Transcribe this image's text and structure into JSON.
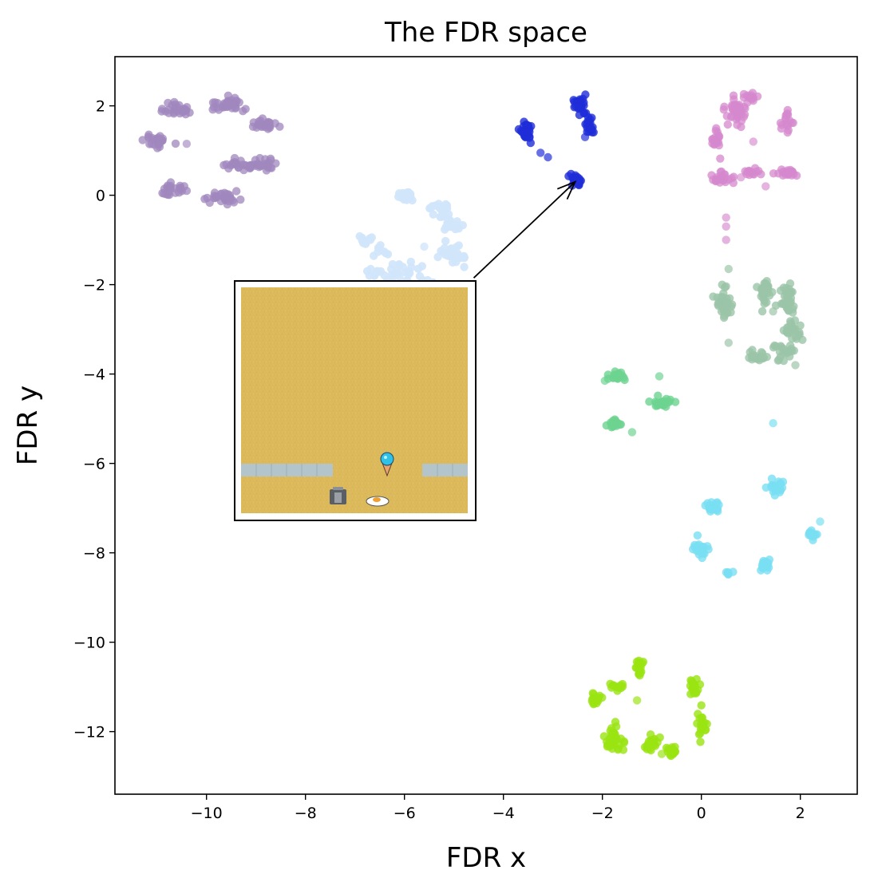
{
  "chart_data": {
    "type": "scatter",
    "title": "The FDR space",
    "xlabel": "FDR x",
    "ylabel": "FDR y",
    "xlim": [
      -11.85,
      3.15
    ],
    "ylim": [
      -13.4,
      3.1
    ],
    "xticks": [
      -10,
      -8,
      -6,
      -4,
      -2,
      0,
      2
    ],
    "yticks": [
      2,
      0,
      -2,
      -4,
      -6,
      -8,
      -10,
      -12
    ],
    "xtick_labels": [
      "−10",
      "−8",
      "−6",
      "−4",
      "−2",
      "0",
      "2"
    ],
    "ytick_labels": [
      "2",
      "0",
      "−2",
      "−4",
      "−6",
      "−8",
      "−10",
      "−12"
    ],
    "grid": false,
    "clusters": [
      {
        "color": "#a087bd",
        "opacity": 0.75,
        "blobs": [
          [
            -10.6,
            1.9,
            0.28,
            0.14,
            30
          ],
          [
            -9.6,
            2.05,
            0.35,
            0.13,
            35
          ],
          [
            -11.0,
            1.22,
            0.25,
            0.12,
            25
          ],
          [
            -8.8,
            1.58,
            0.25,
            0.13,
            25
          ],
          [
            -9.4,
            0.68,
            0.22,
            0.1,
            18
          ],
          [
            -8.9,
            0.68,
            0.35,
            0.12,
            30
          ],
          [
            -10.7,
            0.12,
            0.3,
            0.12,
            25
          ],
          [
            -9.7,
            -0.08,
            0.35,
            0.13,
            30
          ]
        ],
        "points": [
          [
            -10.4,
            1.15
          ],
          [
            -8.7,
            0.78
          ]
        ]
      },
      {
        "color": "#d2e6fb",
        "opacity": 0.95,
        "blobs": [
          [
            -6.0,
            -0.03,
            0.16,
            0.14,
            18
          ],
          [
            -5.3,
            -0.3,
            0.22,
            0.18,
            18
          ],
          [
            -5.05,
            -0.6,
            0.2,
            0.18,
            16
          ],
          [
            -6.8,
            -1.0,
            0.18,
            0.1,
            12
          ],
          [
            -6.5,
            -1.25,
            0.12,
            0.1,
            8
          ],
          [
            -5.05,
            -1.3,
            0.3,
            0.22,
            26
          ],
          [
            -5.95,
            -1.7,
            0.3,
            0.18,
            22
          ],
          [
            -6.55,
            -1.75,
            0.2,
            0.12,
            12
          ],
          [
            -5.45,
            -1.95,
            0.2,
            0.12,
            10
          ]
        ],
        "points": [
          [
            -5.6,
            -1.15
          ]
        ]
      },
      {
        "color": "#1f2dd8",
        "opacity": 0.8,
        "blobs": [
          [
            -3.55,
            1.45,
            0.12,
            0.22,
            28
          ],
          [
            -2.45,
            2.0,
            0.14,
            0.18,
            26
          ],
          [
            -2.25,
            1.55,
            0.1,
            0.2,
            20
          ],
          [
            -2.55,
            0.35,
            0.15,
            0.1,
            22
          ]
        ],
        "points": [
          [
            -3.25,
            0.95
          ],
          [
            -3.1,
            0.85
          ],
          [
            -2.35,
            1.3
          ]
        ]
      },
      {
        "color": "#d588cd",
        "opacity": 0.75,
        "blobs": [
          [
            0.7,
            1.9,
            0.2,
            0.28,
            40
          ],
          [
            0.3,
            1.25,
            0.1,
            0.25,
            20
          ],
          [
            1.0,
            2.2,
            0.15,
            0.1,
            15
          ],
          [
            1.75,
            1.65,
            0.1,
            0.2,
            18
          ],
          [
            0.45,
            0.4,
            0.2,
            0.12,
            25
          ],
          [
            1.05,
            0.5,
            0.15,
            0.1,
            14
          ],
          [
            1.75,
            0.5,
            0.2,
            0.1,
            22
          ]
        ],
        "points": [
          [
            1.05,
            1.2
          ],
          [
            0.5,
            -0.5
          ],
          [
            0.5,
            -0.7
          ],
          [
            0.5,
            -1.0
          ],
          [
            1.3,
            0.2
          ],
          [
            0.8,
            0.4
          ]
        ]
      },
      {
        "color": "#9bc4a8",
        "opacity": 0.8,
        "blobs": [
          [
            0.45,
            -2.5,
            0.15,
            0.32,
            40
          ],
          [
            1.3,
            -2.2,
            0.12,
            0.35,
            26
          ],
          [
            1.75,
            -2.3,
            0.12,
            0.4,
            30
          ],
          [
            1.85,
            -3.0,
            0.15,
            0.3,
            24
          ],
          [
            1.1,
            -3.6,
            0.22,
            0.12,
            22
          ],
          [
            1.7,
            -3.5,
            0.2,
            0.2,
            20
          ]
        ],
        "points": [
          [
            0.55,
            -1.65
          ],
          [
            1.9,
            -3.8
          ],
          [
            1.55,
            -3.7
          ],
          [
            1.45,
            -2.6
          ],
          [
            0.55,
            -3.3
          ]
        ]
      },
      {
        "color": "#6dd390",
        "opacity": 0.8,
        "blobs": [
          [
            -1.7,
            -4.05,
            0.15,
            0.1,
            18
          ],
          [
            -0.8,
            -4.65,
            0.25,
            0.1,
            24
          ],
          [
            -1.75,
            -5.1,
            0.15,
            0.1,
            20
          ]
        ],
        "points": [
          [
            -0.85,
            -4.05
          ],
          [
            -1.4,
            -5.3
          ],
          [
            -1.95,
            -4.15
          ]
        ]
      },
      {
        "color": "#79dff2",
        "opacity": 0.8,
        "blobs": [
          [
            0.25,
            -6.95,
            0.15,
            0.12,
            20
          ],
          [
            1.5,
            -6.55,
            0.2,
            0.15,
            24
          ],
          [
            0.0,
            -7.9,
            0.12,
            0.2,
            20
          ],
          [
            1.3,
            -8.3,
            0.12,
            0.15,
            18
          ],
          [
            2.25,
            -7.6,
            0.12,
            0.1,
            14
          ],
          [
            0.6,
            -8.45,
            0.1,
            0.06,
            6
          ]
        ],
        "points": [
          [
            1.45,
            -5.1
          ],
          [
            2.4,
            -7.3
          ]
        ]
      },
      {
        "color": "#9ae312",
        "opacity": 0.8,
        "blobs": [
          [
            -1.25,
            -10.55,
            0.1,
            0.18,
            18
          ],
          [
            -2.15,
            -11.25,
            0.12,
            0.15,
            16
          ],
          [
            -1.7,
            -11.0,
            0.15,
            0.1,
            12
          ],
          [
            -0.15,
            -11.0,
            0.1,
            0.2,
            20
          ],
          [
            -1.75,
            -12.2,
            0.15,
            0.3,
            35
          ],
          [
            -1.0,
            -12.3,
            0.12,
            0.2,
            20
          ],
          [
            -0.6,
            -12.45,
            0.15,
            0.1,
            18
          ],
          [
            0.0,
            -11.85,
            0.1,
            0.25,
            20
          ]
        ],
        "points": [
          [
            -1.3,
            -11.3
          ],
          [
            -0.8,
            -12.5
          ]
        ]
      }
    ],
    "annotation": {
      "arrow_from": [
        -4.6,
        -1.85
      ],
      "arrow_to": [
        -2.55,
        0.3
      ]
    }
  }
}
